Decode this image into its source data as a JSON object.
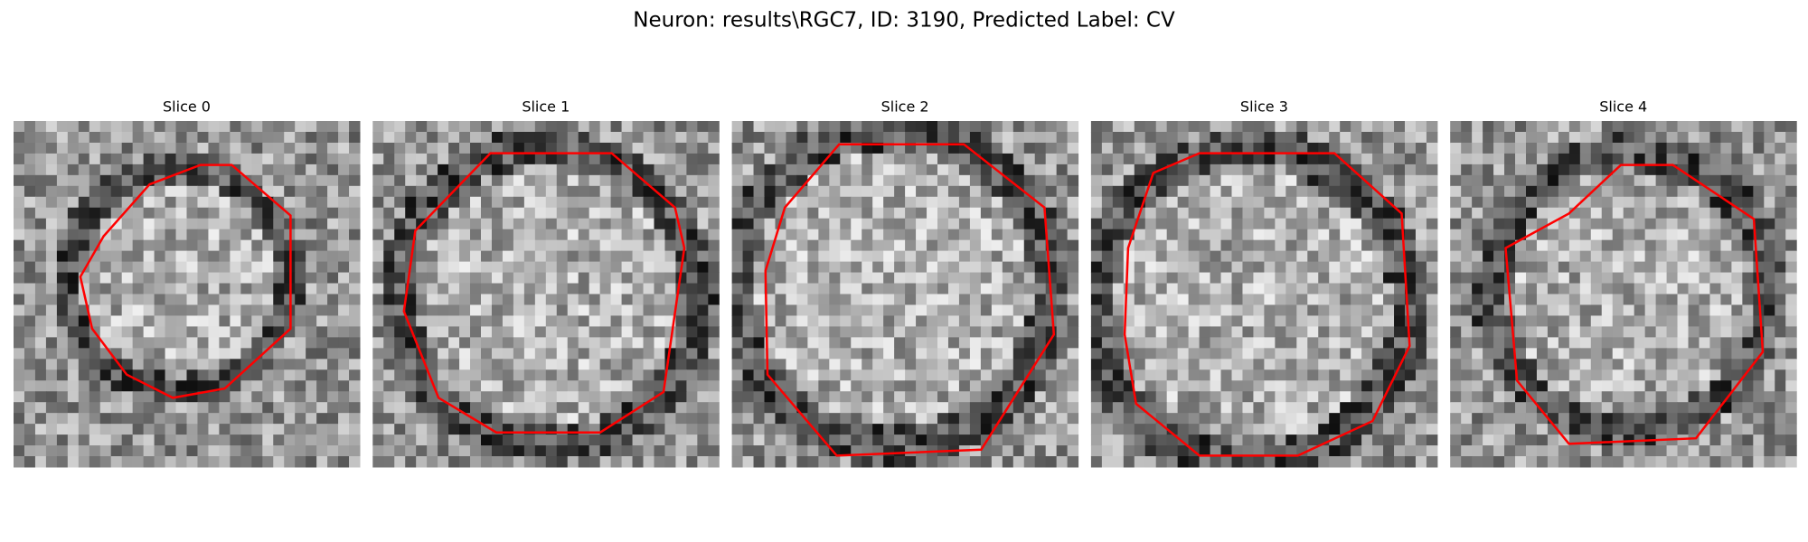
{
  "title": "Neuron: results\\RGC7, ID: 3190, Predicted Label: CV",
  "panels": [
    {
      "title": "Slice 0"
    },
    {
      "title": "Slice 1"
    },
    {
      "title": "Slice 2"
    },
    {
      "title": "Slice 3"
    },
    {
      "title": "Slice 4"
    }
  ]
}
